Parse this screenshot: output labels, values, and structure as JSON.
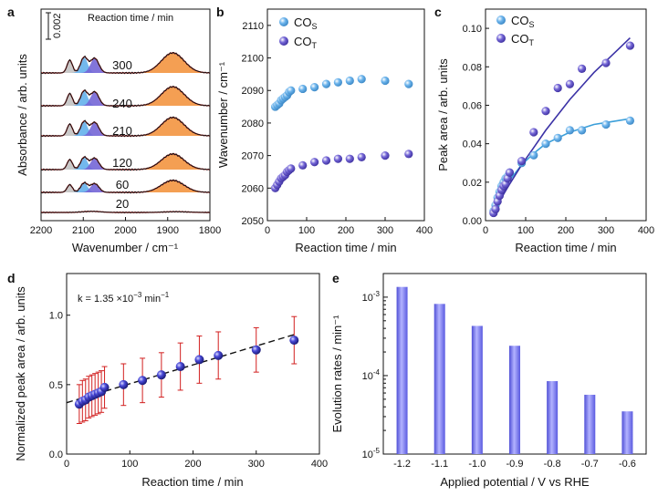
{
  "panels": {
    "a": {
      "label": "a"
    },
    "b": {
      "label": "b"
    },
    "c": {
      "label": "c"
    },
    "d": {
      "label": "d"
    },
    "e": {
      "label": "e"
    }
  },
  "colors": {
    "co_s": "#6cb4ec",
    "co_t": "#7466d6",
    "orange": "#f39a4a",
    "gray": "#c6c6c6",
    "fit_red": "#d93b3b",
    "fit_c_s": "#3b9fd9",
    "fit_c_t": "#3b32a6",
    "bar": "#7f7fef",
    "errbar": "#d21f1f",
    "sphere": "#2f2fb8"
  },
  "chart_data": [
    {
      "panel": "a",
      "type": "line",
      "title": "Reaction time / min",
      "xlabel": "Wavenumber / cm⁻¹",
      "ylabel": "Absorbance / arb. units",
      "xlim": [
        2200,
        1800
      ],
      "x_ticks": [
        "2200",
        "2100",
        "2000",
        "1900",
        "1800"
      ],
      "scale_bar_label": "0.002",
      "traces": [
        {
          "time": "20"
        },
        {
          "time": "60"
        },
        {
          "time": "120"
        },
        {
          "time": "210"
        },
        {
          "time": "240"
        },
        {
          "time": "300"
        }
      ]
    },
    {
      "panel": "b",
      "type": "scatter",
      "xlabel": "Reaction time / min",
      "ylabel": "Wavenumber / cm⁻¹",
      "xlim": [
        0,
        400
      ],
      "ylim": [
        2050,
        2115
      ],
      "x_ticks": [
        "0",
        "100",
        "200",
        "300",
        "400"
      ],
      "y_ticks": [
        "2050",
        "2060",
        "2070",
        "2080",
        "2090",
        "2100",
        "2110"
      ],
      "series": [
        {
          "name": "CO",
          "sub": "S",
          "x": [
            20,
            25,
            30,
            35,
            40,
            45,
            50,
            55,
            60,
            90,
            120,
            150,
            180,
            210,
            240,
            300,
            360
          ],
          "y": [
            2085,
            2085.5,
            2086,
            2087,
            2087.5,
            2088,
            2088.5,
            2089.5,
            2090,
            2090.5,
            2091,
            2092,
            2092.5,
            2093,
            2093.5,
            2093,
            2092
          ]
        },
        {
          "name": "CO",
          "sub": "T",
          "x": [
            20,
            25,
            30,
            35,
            40,
            45,
            50,
            55,
            60,
            90,
            120,
            150,
            180,
            210,
            240,
            300,
            360
          ],
          "y": [
            2060,
            2061,
            2062,
            2063,
            2063.5,
            2064,
            2065,
            2065.5,
            2066,
            2067,
            2068,
            2068.5,
            2069,
            2069,
            2069.5,
            2070,
            2070.5
          ]
        }
      ]
    },
    {
      "panel": "c",
      "type": "scatter",
      "xlabel": "Reaction time / min",
      "ylabel": "Peak area / arb. units",
      "xlim": [
        0,
        400
      ],
      "ylim": [
        0,
        0.11
      ],
      "x_ticks": [
        "0",
        "100",
        "200",
        "300",
        "400"
      ],
      "y_ticks": [
        "0.00",
        "0.02",
        "0.04",
        "0.06",
        "0.08",
        "0.10"
      ],
      "series": [
        {
          "name": "CO",
          "sub": "S",
          "x": [
            20,
            25,
            30,
            35,
            40,
            45,
            50,
            55,
            60,
            90,
            120,
            150,
            180,
            210,
            240,
            300,
            360
          ],
          "y": [
            0.005,
            0.008,
            0.012,
            0.015,
            0.018,
            0.02,
            0.022,
            0.023,
            0.025,
            0.03,
            0.034,
            0.04,
            0.043,
            0.047,
            0.047,
            0.05,
            0.052
          ]
        },
        {
          "name": "CO",
          "sub": "T",
          "x": [
            20,
            25,
            30,
            35,
            40,
            45,
            50,
            55,
            60,
            90,
            120,
            150,
            180,
            210,
            240,
            300,
            360
          ],
          "y": [
            0.004,
            0.006,
            0.01,
            0.013,
            0.016,
            0.018,
            0.019,
            0.022,
            0.025,
            0.031,
            0.046,
            0.057,
            0.069,
            0.071,
            0.079,
            0.082,
            0.091
          ]
        }
      ],
      "fits": [
        {
          "series": "CO_S",
          "x": [
            20,
            40,
            60,
            90,
            120,
            150,
            180,
            210,
            240,
            270,
            300,
            330,
            360
          ],
          "y": [
            0.005,
            0.014,
            0.021,
            0.029,
            0.035,
            0.04,
            0.043,
            0.046,
            0.048,
            0.05,
            0.051,
            0.052,
            0.053
          ]
        },
        {
          "series": "CO_T",
          "x": [
            20,
            40,
            60,
            90,
            120,
            150,
            180,
            210,
            240,
            270,
            300,
            330,
            360
          ],
          "y": [
            0.004,
            0.012,
            0.019,
            0.029,
            0.038,
            0.047,
            0.055,
            0.063,
            0.07,
            0.077,
            0.083,
            0.089,
            0.095
          ]
        }
      ]
    },
    {
      "panel": "d",
      "type": "scatter",
      "xlabel": "Reaction time / min",
      "ylabel": "Normalized peak area / arb. units",
      "xlim": [
        0,
        400
      ],
      "ylim": [
        0,
        1.3
      ],
      "x_ticks": [
        "0",
        "100",
        "200",
        "300",
        "400"
      ],
      "y_ticks": [
        "0.0",
        "0.5",
        "1.0"
      ],
      "annotation": {
        "prefix": "k = 1.35 ×10",
        "exp": "−3",
        "suffix": " min",
        "suffix_exp": "−1"
      },
      "x": [
        20,
        25,
        30,
        35,
        40,
        45,
        50,
        55,
        60,
        90,
        120,
        150,
        180,
        210,
        240,
        300,
        360
      ],
      "y": [
        0.36,
        0.38,
        0.39,
        0.41,
        0.42,
        0.43,
        0.44,
        0.45,
        0.48,
        0.5,
        0.53,
        0.57,
        0.63,
        0.68,
        0.71,
        0.75,
        0.82
      ],
      "err": [
        0.14,
        0.15,
        0.15,
        0.15,
        0.15,
        0.15,
        0.15,
        0.15,
        0.15,
        0.15,
        0.16,
        0.16,
        0.17,
        0.17,
        0.17,
        0.16,
        0.17
      ],
      "fit": {
        "x": [
          0,
          360
        ],
        "y": [
          0.37,
          0.86
        ]
      }
    },
    {
      "panel": "e",
      "type": "bar",
      "xlabel": "Applied potential / V vs RHE",
      "ylabel": "Evolution rates / min⁻¹",
      "yscale": "log",
      "ylim": [
        1e-05,
        0.002
      ],
      "y_ticks": [
        {
          "base": "10",
          "exp": "-3",
          "value": 0.001
        },
        {
          "base": "10",
          "exp": "-4",
          "value": 0.0001
        },
        {
          "base": "10",
          "exp": "-5",
          "value": 1e-05
        }
      ],
      "categories": [
        "-1.2",
        "-1.1",
        "-1.0",
        "-0.9",
        "-0.8",
        "-0.7",
        "-0.6"
      ],
      "values": [
        0.00135,
        0.00082,
        0.00043,
        0.00024,
        8.5e-05,
        5.7e-05,
        3.5e-05
      ]
    }
  ]
}
